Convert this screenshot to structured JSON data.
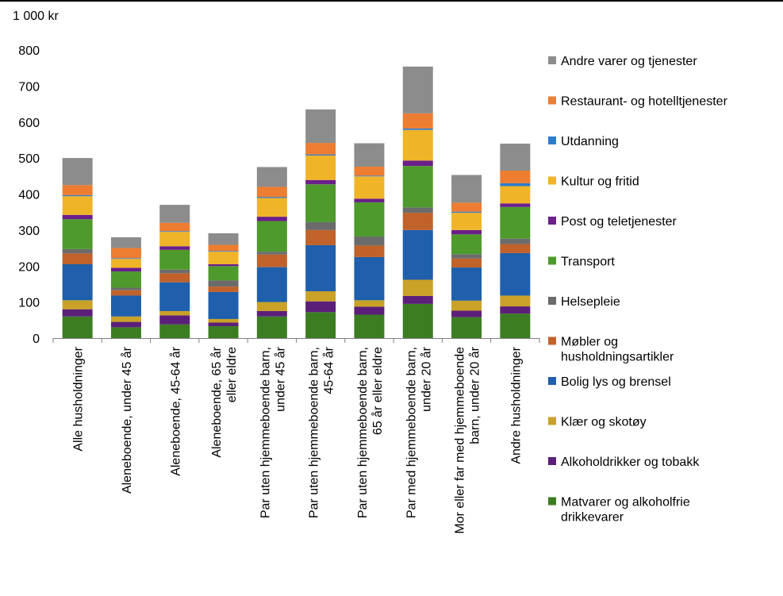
{
  "chart_data": {
    "type": "bar",
    "stacked": true,
    "unit_label": "1 000 kr",
    "ylim": [
      0,
      800
    ],
    "yticks": [
      "0",
      "100",
      "200",
      "300",
      "400",
      "500",
      "600",
      "700",
      "800"
    ],
    "grid": false,
    "legend_position": "right",
    "categories": [
      [
        "Alle husholdninger"
      ],
      [
        "Aleneboende, under 45 år"
      ],
      [
        "Aleneboende, 45-64 år"
      ],
      [
        "Aleneboende, 65 år",
        "eller eldre"
      ],
      [
        "Par uten hjemmeboende barn,",
        "under 45 år"
      ],
      [
        "Par uten hjemmeboende barn,",
        "45-64 år"
      ],
      [
        "Par uten hjemmeboende barn,",
        "65 år eller eldre"
      ],
      [
        "Par med hjemmeboende barn,",
        "under 20 år"
      ],
      [
        "Mor eller far med hjemmeboende",
        "barn, under 20 år"
      ],
      [
        "Andre husholdninger"
      ]
    ],
    "series": [
      {
        "name": [
          "Matvarer og alkoholfrie",
          "drikkevarer"
        ],
        "color": "#3c7d22",
        "values": [
          60,
          30,
          38,
          33,
          60,
          72,
          65,
          95,
          58,
          68
        ]
      },
      {
        "name": [
          "Alkoholdrikker og tobakk"
        ],
        "color": "#5b1f7a",
        "values": [
          20,
          15,
          25,
          10,
          15,
          30,
          22,
          22,
          18,
          20
        ]
      },
      {
        "name": [
          "Klær og skotøy"
        ],
        "color": "#c9a227",
        "values": [
          25,
          15,
          12,
          10,
          25,
          28,
          18,
          45,
          28,
          30
        ]
      },
      {
        "name": [
          "Bolig lys og brensel"
        ],
        "color": "#1f5fab",
        "values": [
          100,
          58,
          80,
          75,
          97,
          128,
          120,
          138,
          92,
          118
        ]
      },
      {
        "name": [
          "Møbler og",
          "husholdningsartikler"
        ],
        "color": "#c0622a",
        "values": [
          30,
          15,
          25,
          15,
          35,
          42,
          32,
          48,
          25,
          25
        ]
      },
      {
        "name": [
          "Helsepleie"
        ],
        "color": "#6b6b6b",
        "values": [
          12,
          7,
          10,
          17,
          8,
          22,
          25,
          15,
          12,
          15
        ]
      },
      {
        "name": [
          "Transport"
        ],
        "color": "#4e9a2c",
        "values": [
          83,
          45,
          55,
          40,
          85,
          105,
          95,
          115,
          55,
          88
        ]
      },
      {
        "name": [
          "Post og teletjenester"
        ],
        "color": "#6a1f8a",
        "values": [
          12,
          10,
          10,
          5,
          12,
          12,
          10,
          15,
          12,
          10
        ]
      },
      {
        "name": [
          "Kultur og fritid"
        ],
        "color": "#f0b429",
        "values": [
          52,
          25,
          40,
          35,
          52,
          68,
          62,
          85,
          48,
          48
        ]
      },
      {
        "name": [
          "Utdanning"
        ],
        "color": "#2c7bd1",
        "values": [
          3,
          2,
          2,
          2,
          3,
          3,
          2,
          4,
          3,
          8
        ]
      },
      {
        "name": [
          "Restaurant- og hotelltjenester"
        ],
        "color": "#ed7d31",
        "values": [
          28,
          28,
          23,
          17,
          28,
          32,
          25,
          42,
          25,
          35
        ]
      },
      {
        "name": [
          "Andre varer og tjenester"
        ],
        "color": "#8c8c8c",
        "values": [
          75,
          30,
          50,
          32,
          55,
          93,
          65,
          130,
          77,
          75
        ]
      }
    ]
  }
}
